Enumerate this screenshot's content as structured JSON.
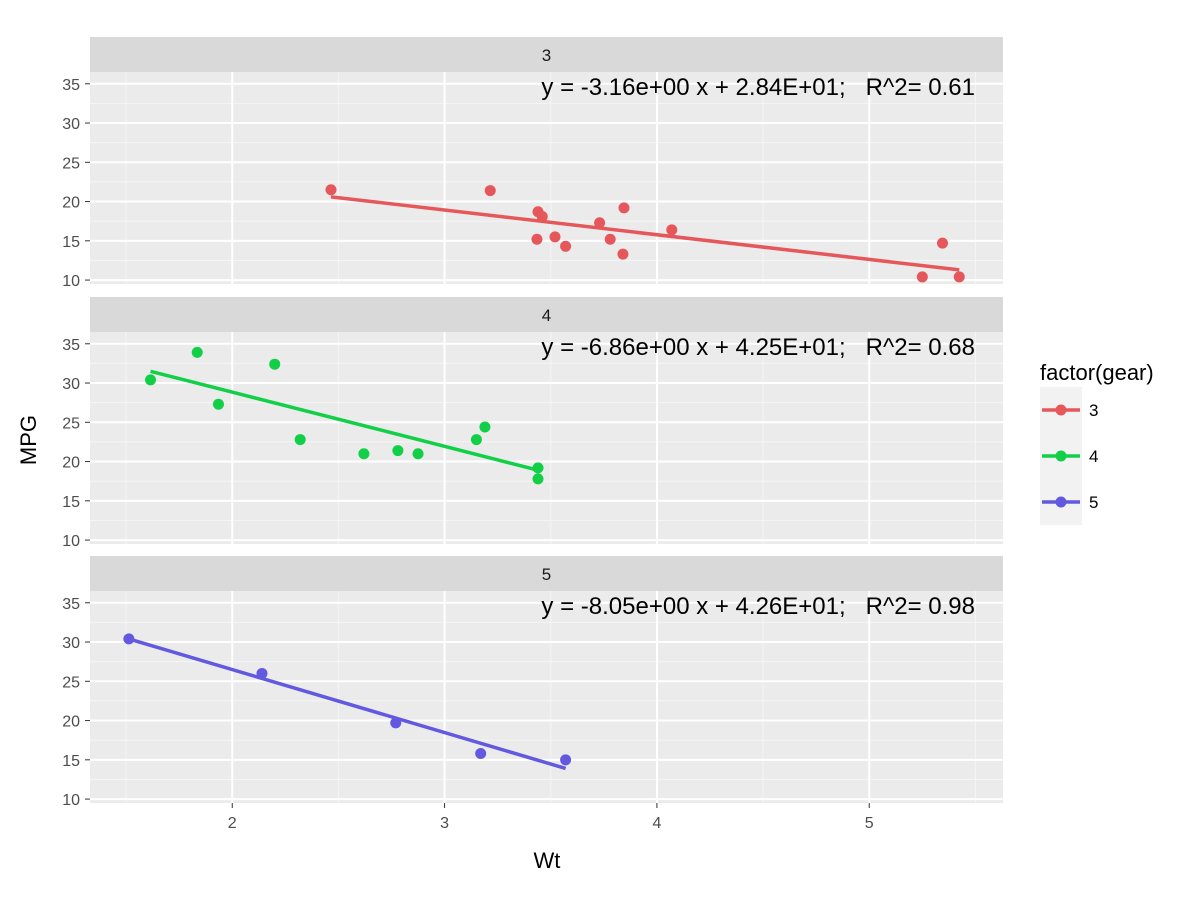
{
  "chart_data": {
    "type": "scatter",
    "facet_var": "gear",
    "xlabel": "Wt",
    "ylabel": "MPG",
    "xlim": [
      1.33,
      5.63
    ],
    "ylim": [
      9.5,
      36.5
    ],
    "x_ticks": [
      2,
      3,
      4,
      5
    ],
    "y_ticks": [
      10,
      15,
      20,
      25,
      30,
      35
    ],
    "grid": true,
    "legend": {
      "title": "factor(gear)",
      "position": "right",
      "entries": [
        {
          "label": "3",
          "color": "#E5575A"
        },
        {
          "label": "4",
          "color": "#11D047"
        },
        {
          "label": "5",
          "color": "#6359E0"
        }
      ]
    },
    "panels": [
      {
        "strip": "3",
        "color": "#E5575A",
        "equation": "y = -3.16e+00 x + 2.84E+01;   R^2= 0.61",
        "fit": {
          "x": [
            2.465,
            5.424
          ],
          "y": [
            20.6,
            11.3
          ]
        },
        "points": [
          {
            "x": 2.465,
            "y": 21.5
          },
          {
            "x": 3.215,
            "y": 21.4
          },
          {
            "x": 3.44,
            "y": 18.7
          },
          {
            "x": 3.46,
            "y": 18.1
          },
          {
            "x": 3.57,
            "y": 14.3
          },
          {
            "x": 4.07,
            "y": 16.4
          },
          {
            "x": 3.73,
            "y": 17.3
          },
          {
            "x": 3.78,
            "y": 15.2
          },
          {
            "x": 5.25,
            "y": 10.4
          },
          {
            "x": 5.424,
            "y": 10.4
          },
          {
            "x": 5.345,
            "y": 14.7
          },
          {
            "x": 3.52,
            "y": 15.5
          },
          {
            "x": 3.435,
            "y": 15.2
          },
          {
            "x": 3.84,
            "y": 13.3
          },
          {
            "x": 3.845,
            "y": 19.2
          }
        ]
      },
      {
        "strip": "4",
        "color": "#11D047",
        "equation": "y = -6.86e+00 x + 4.25E+01;   R^2= 0.68",
        "fit": {
          "x": [
            1.615,
            3.44
          ],
          "y": [
            31.5,
            18.9
          ]
        },
        "points": [
          {
            "x": 2.62,
            "y": 21.0
          },
          {
            "x": 2.875,
            "y": 21.0
          },
          {
            "x": 2.32,
            "y": 22.8
          },
          {
            "x": 3.19,
            "y": 24.4
          },
          {
            "x": 3.15,
            "y": 22.8
          },
          {
            "x": 3.44,
            "y": 19.2
          },
          {
            "x": 3.44,
            "y": 17.8
          },
          {
            "x": 2.2,
            "y": 32.4
          },
          {
            "x": 1.615,
            "y": 30.4
          },
          {
            "x": 1.835,
            "y": 33.9
          },
          {
            "x": 1.935,
            "y": 27.3
          },
          {
            "x": 2.78,
            "y": 21.4
          }
        ]
      },
      {
        "strip": "5",
        "color": "#6359E0",
        "equation": "y = -8.05e+00 x + 4.26E+01;   R^2= 0.98",
        "fit": {
          "x": [
            1.513,
            3.57
          ],
          "y": [
            30.4,
            13.9
          ]
        },
        "points": [
          {
            "x": 2.14,
            "y": 26.0
          },
          {
            "x": 1.513,
            "y": 30.4
          },
          {
            "x": 3.17,
            "y": 15.8
          },
          {
            "x": 2.77,
            "y": 19.7
          },
          {
            "x": 3.57,
            "y": 15.0
          }
        ]
      }
    ]
  }
}
